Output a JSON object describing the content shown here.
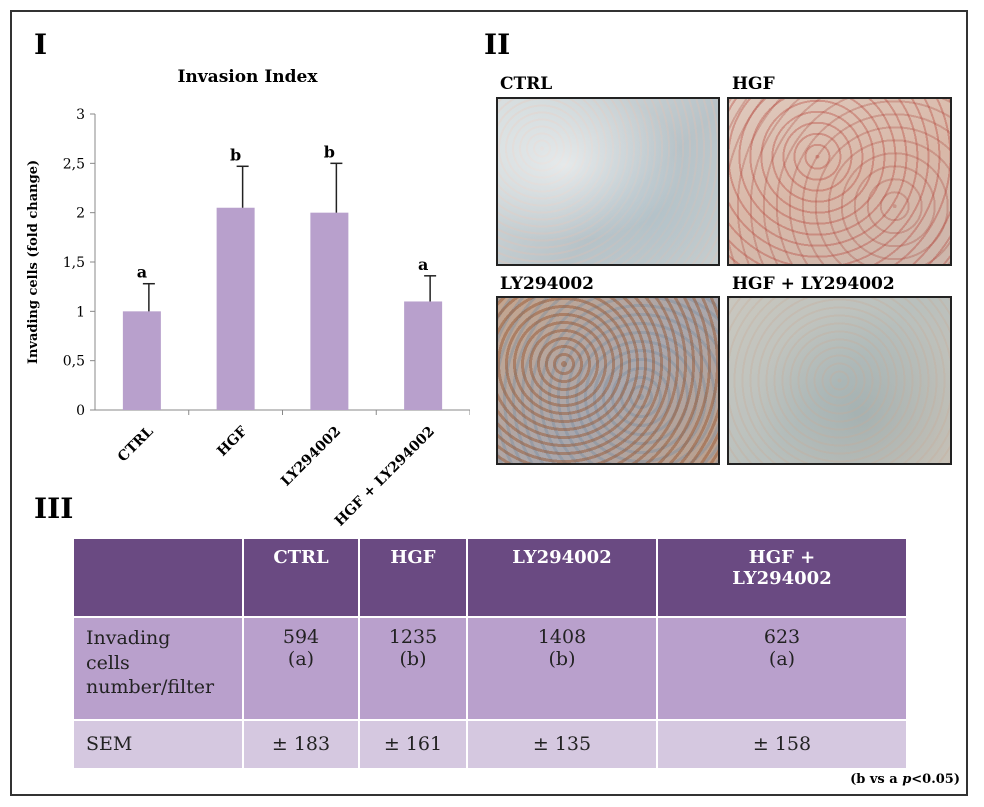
{
  "panels": {
    "I": "I",
    "II": "II",
    "III": "III"
  },
  "chart_data": {
    "type": "bar",
    "title": "Invasion Index",
    "xlabel": "",
    "ylabel": "Invading cells (fold change)",
    "categories": [
      "CTRL",
      "HGF",
      "LY294002",
      "HGF + LY294002"
    ],
    "values": [
      1.0,
      2.05,
      2.0,
      1.1
    ],
    "errors": [
      0.28,
      0.42,
      0.5,
      0.26
    ],
    "significance": [
      "a",
      "b",
      "b",
      "a"
    ],
    "ylim": [
      0,
      3
    ],
    "yticks": [
      0,
      0.5,
      1,
      1.5,
      2,
      2.5,
      3
    ],
    "ytick_labels": [
      "0",
      "0,5",
      "1",
      "1,5",
      "2",
      "2,5",
      "3"
    ],
    "bar_color": "#b8a0cc",
    "grid": false
  },
  "photos": [
    {
      "label": "CTRL"
    },
    {
      "label": "HGF"
    },
    {
      "label": "LY294002"
    },
    {
      "label": "HGF + LY294002"
    }
  ],
  "table": {
    "header": [
      "",
      "CTRL",
      "HGF",
      "LY294002",
      "HGF +\nLY294002"
    ],
    "rows": [
      {
        "label": "Invading cells number/filter",
        "cells": [
          [
            "594",
            "(a)"
          ],
          [
            "1235",
            "(b)"
          ],
          [
            "1408",
            "(b)"
          ],
          [
            "623",
            "(a)"
          ]
        ]
      },
      {
        "label": "SEM",
        "cells": [
          [
            "± 183"
          ],
          [
            "± 161"
          ],
          [
            "± 135"
          ],
          [
            "± 158"
          ]
        ]
      }
    ],
    "header_color": "#6a4a82",
    "row1_color": "#b9a0cc",
    "row2_color": "#d5c8e0"
  },
  "footnote": {
    "pre": "(b vs a ",
    "p": "p",
    "post": "<0.05)"
  }
}
